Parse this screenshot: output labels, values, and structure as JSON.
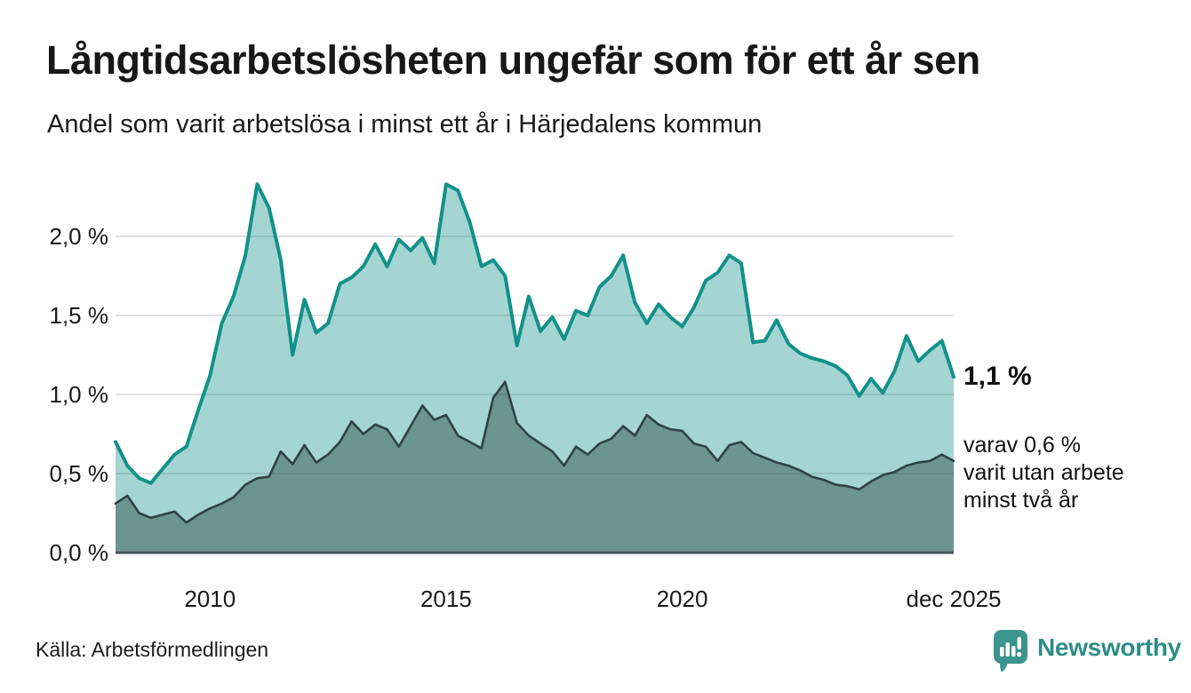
{
  "header": {
    "title": "Långtidsarbetslösheten ungefär som för ett år sen",
    "subtitle": "Andel som varit arbetslösa i minst ett år i Härjedalens kommun"
  },
  "annotations": {
    "latest_total": "1,1 %",
    "latest_sub_lines": [
      "varav 0,6 %",
      "varit utan arbete",
      "minst två år"
    ]
  },
  "footer": {
    "source": "Källa: Arbetsförmedlingen",
    "brand": "Newsworthy"
  },
  "colors": {
    "accent_teal_line": "#12918a",
    "area_light_visible": "#a9d6d0",
    "area_dark_visible": "#6f9e99",
    "dark_line": "#2e4246",
    "axis_line": "#3f5654",
    "gridline": "#e1e1e1",
    "text": "#1a1a1a",
    "brand_teal": "#2e8d86",
    "logo_bubble": "#3b948d"
  },
  "chart_data": {
    "type": "area",
    "unit": "%",
    "x_start_year": 2008,
    "x_step_months": 3,
    "x_end_label_month": "dec",
    "ylim": [
      0,
      2.4
    ],
    "grid": true,
    "legend_position": "none",
    "y_ticks": [
      {
        "label": "2,0 %",
        "value": 2.0
      },
      {
        "label": "1,5 %",
        "value": 1.5
      },
      {
        "label": "1,0 %",
        "value": 1.0
      },
      {
        "label": "0,5 %",
        "value": 0.5
      },
      {
        "label": "0,0 %",
        "value": 0.0
      }
    ],
    "x_ticks": [
      {
        "label": "2010",
        "index": 8
      },
      {
        "label": "2015",
        "index": 28
      },
      {
        "label": "2020",
        "index": 48
      },
      {
        "label": "dec 2025",
        "index": 71
      }
    ],
    "series": [
      {
        "name": "arbetslösa minst ett år",
        "latest_value": 1.1,
        "values": [
          0.7,
          0.55,
          0.47,
          0.44,
          0.53,
          0.62,
          0.67,
          0.9,
          1.12,
          1.45,
          1.62,
          1.88,
          2.33,
          2.18,
          1.85,
          1.25,
          1.6,
          1.39,
          1.45,
          1.7,
          1.74,
          1.81,
          1.95,
          1.81,
          1.98,
          1.91,
          1.99,
          1.83,
          2.33,
          2.29,
          2.09,
          1.81,
          1.85,
          1.75,
          1.31,
          1.62,
          1.4,
          1.49,
          1.35,
          1.53,
          1.5,
          1.68,
          1.75,
          1.88,
          1.58,
          1.45,
          1.57,
          1.49,
          1.43,
          1.55,
          1.72,
          1.77,
          1.88,
          1.83,
          1.33,
          1.34,
          1.47,
          1.32,
          1.26,
          1.23,
          1.21,
          1.18,
          1.12,
          0.99,
          1.1,
          1.01,
          1.15,
          1.37,
          1.21,
          1.28,
          1.34,
          1.11
        ]
      },
      {
        "name": "varit utan arbete minst två år",
        "latest_value": 0.6,
        "values": [
          0.31,
          0.36,
          0.25,
          0.22,
          0.24,
          0.26,
          0.19,
          0.24,
          0.28,
          0.31,
          0.35,
          0.43,
          0.47,
          0.48,
          0.64,
          0.56,
          0.68,
          0.57,
          0.62,
          0.7,
          0.83,
          0.75,
          0.81,
          0.78,
          0.67,
          0.8,
          0.93,
          0.84,
          0.87,
          0.74,
          0.7,
          0.66,
          0.98,
          1.08,
          0.82,
          0.74,
          0.69,
          0.64,
          0.55,
          0.67,
          0.62,
          0.69,
          0.72,
          0.8,
          0.74,
          0.87,
          0.81,
          0.78,
          0.77,
          0.69,
          0.67,
          0.58,
          0.68,
          0.7,
          0.63,
          0.6,
          0.57,
          0.55,
          0.52,
          0.48,
          0.46,
          0.43,
          0.42,
          0.4,
          0.45,
          0.49,
          0.51,
          0.55,
          0.57,
          0.58,
          0.62,
          0.58
        ]
      }
    ]
  }
}
